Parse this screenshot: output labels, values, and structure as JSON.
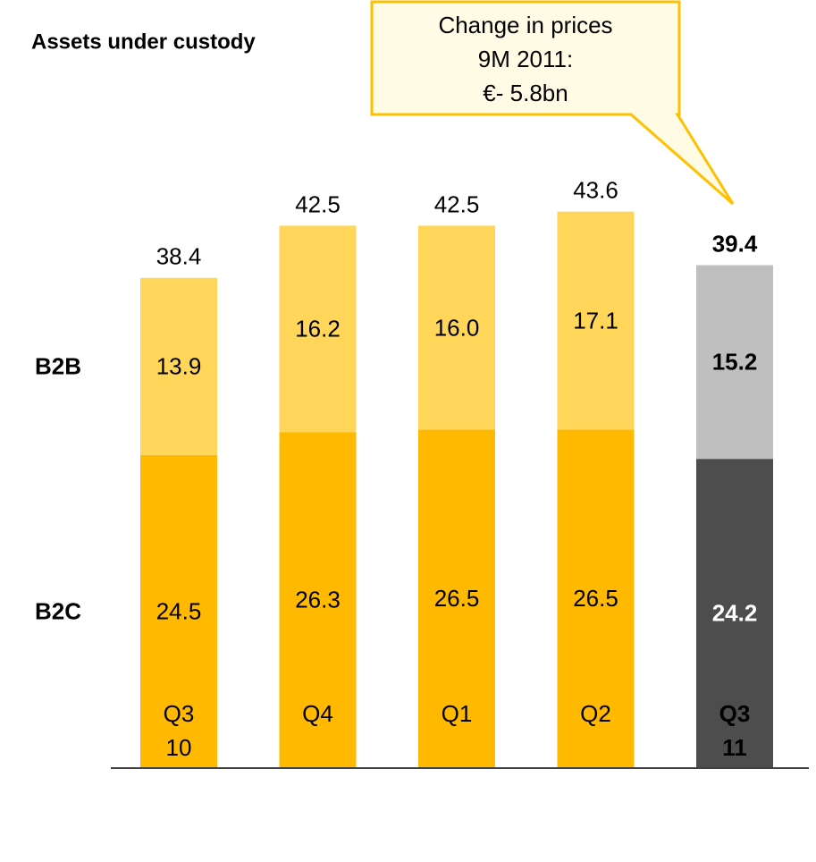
{
  "chart_data": {
    "type": "bar",
    "stacked": true,
    "title": "Assets under custody",
    "annotation": [
      "Change in prices",
      "9M 2011:",
      "€- 5.8bn"
    ],
    "categories": [
      "Q3 10",
      "Q4",
      "Q1",
      "Q2",
      "Q3 11"
    ],
    "highlight": 4,
    "series": [
      {
        "name": "B2C",
        "colors": [
          "#FFB900",
          "#FFB900",
          "#FFB900",
          "#FFB900",
          "#4D4D4D"
        ],
        "values": [
          24.5,
          26.3,
          26.5,
          26.5,
          24.2
        ]
      },
      {
        "name": "B2B",
        "colors": [
          "#FFD55A",
          "#FFD55A",
          "#FFD55A",
          "#FFD55A",
          "#BFBFBF"
        ],
        "values": [
          13.9,
          16.2,
          16.0,
          17.1,
          15.2
        ],
        "value_labels": [
          "13.9",
          "16.2",
          "16.0",
          "17.1",
          "15.2"
        ]
      }
    ],
    "totals": [
      38.4,
      42.5,
      42.5,
      43.6,
      39.4
    ]
  }
}
